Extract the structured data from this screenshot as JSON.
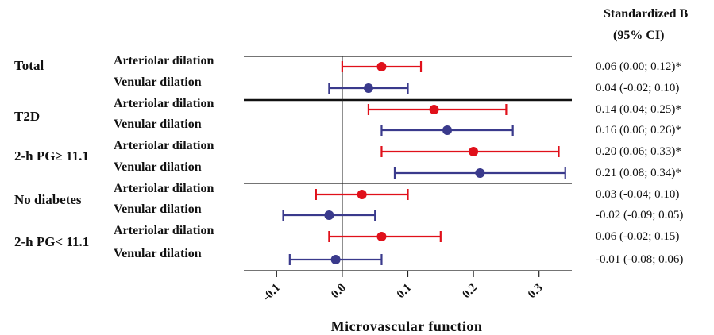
{
  "chart_data": {
    "type": "forest",
    "xlabel": "Microvascular function",
    "ci_header": [
      "Standardized B",
      "(95% CI)"
    ],
    "xlim": [
      -0.15,
      0.35
    ],
    "xticks": [
      -0.1,
      0.0,
      0.1,
      0.2,
      0.3
    ],
    "xtick_labels": [
      "-0.1",
      "0.0",
      "0.1",
      "0.2",
      "0.3"
    ],
    "colors": {
      "arteriolar": "#e0101a",
      "venular": "#3a3a8c"
    },
    "groups": [
      {
        "label": "Total"
      },
      {
        "label": "T2D"
      },
      {
        "label": "2-h PG≥ 11.1"
      },
      {
        "label": "No diabetes"
      },
      {
        "label": "2-h PG< 11.1"
      }
    ],
    "rows": [
      {
        "label": "Arteriolar dilation",
        "kind": "arteriolar",
        "estimate": 0.06,
        "lower": 0.0,
        "upper": 0.12,
        "ci_text": "0.06 (0.00; 0.12)*"
      },
      {
        "label": "Venular dilation",
        "kind": "venular",
        "estimate": 0.04,
        "lower": -0.02,
        "upper": 0.1,
        "ci_text": "0.04 (-0.02; 0.10)"
      },
      {
        "label": "Arteriolar dilation",
        "kind": "arteriolar",
        "estimate": 0.14,
        "lower": 0.04,
        "upper": 0.25,
        "ci_text": "0.14 (0.04; 0.25)*"
      },
      {
        "label": "Venular dilation",
        "kind": "venular",
        "estimate": 0.16,
        "lower": 0.06,
        "upper": 0.26,
        "ci_text": "0.16 (0.06; 0.26)*"
      },
      {
        "label": "Arteriolar dilation",
        "kind": "arteriolar",
        "estimate": 0.2,
        "lower": 0.06,
        "upper": 0.33,
        "ci_text": "0.20 (0.06; 0.33)*"
      },
      {
        "label": "Venular dilation",
        "kind": "venular",
        "estimate": 0.21,
        "lower": 0.08,
        "upper": 0.34,
        "ci_text": "0.21 (0.08; 0.34)*"
      },
      {
        "label": "Arteriolar dilation",
        "kind": "arteriolar",
        "estimate": 0.03,
        "lower": -0.04,
        "upper": 0.1,
        "ci_text": "0.03 (-0.04; 0.10)"
      },
      {
        "label": "Venular dilation",
        "kind": "venular",
        "estimate": -0.02,
        "lower": -0.09,
        "upper": 0.05,
        "ci_text": "-0.02 (-0.09; 0.05)"
      },
      {
        "label": "Arteriolar dilation",
        "kind": "arteriolar",
        "estimate": 0.06,
        "lower": -0.02,
        "upper": 0.15,
        "ci_text": "0.06 (-0.02; 0.15)"
      },
      {
        "label": "Venular dilation",
        "kind": "venular",
        "estimate": -0.01,
        "lower": -0.08,
        "upper": 0.06,
        "ci_text": "-0.01 (-0.08; 0.06)"
      }
    ]
  }
}
